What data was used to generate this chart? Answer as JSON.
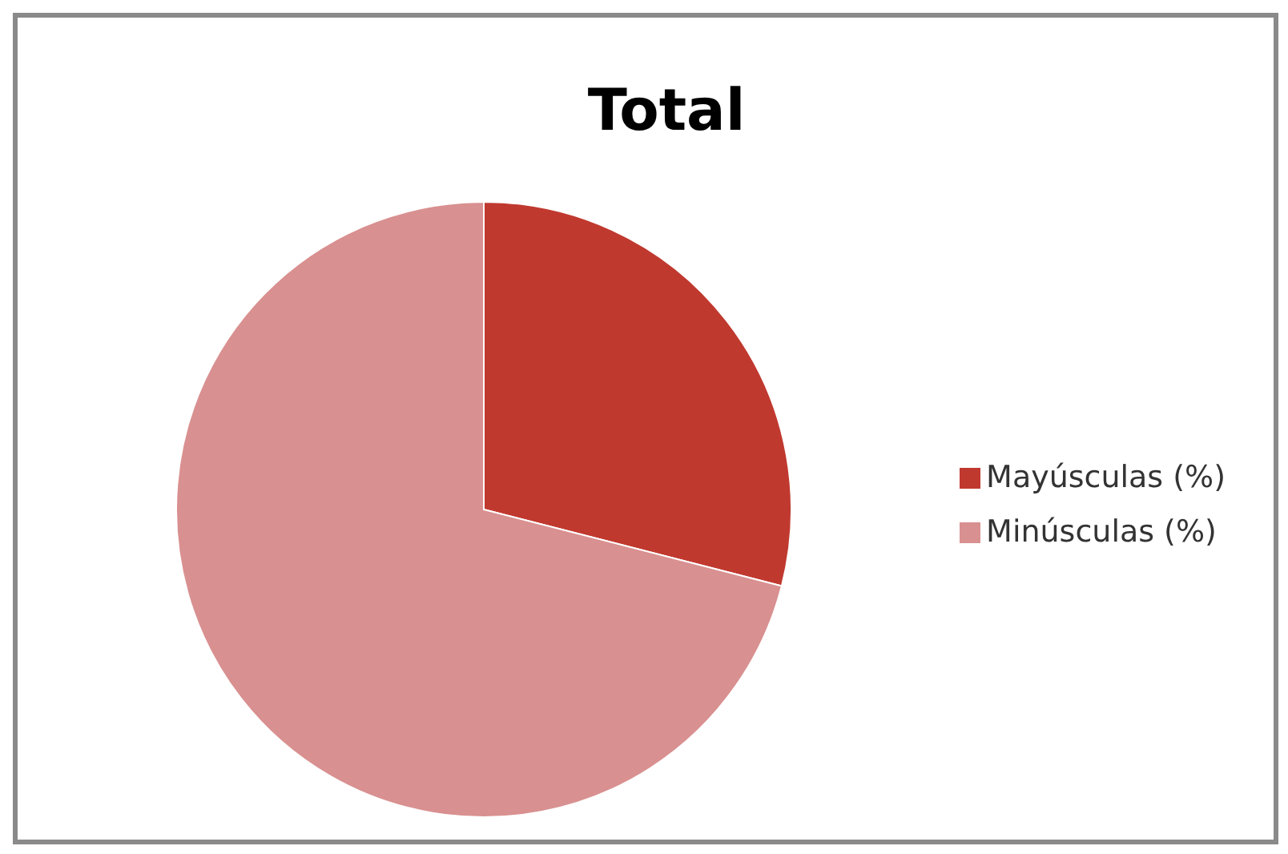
{
  "chart_data": {
    "type": "pie",
    "title": "Total",
    "categories": [
      "Mayúsculas (%)",
      "Minúsculas (%)"
    ],
    "values": [
      29,
      71
    ],
    "colors": [
      "#c0392f",
      "#d99090"
    ],
    "legend": "right"
  }
}
